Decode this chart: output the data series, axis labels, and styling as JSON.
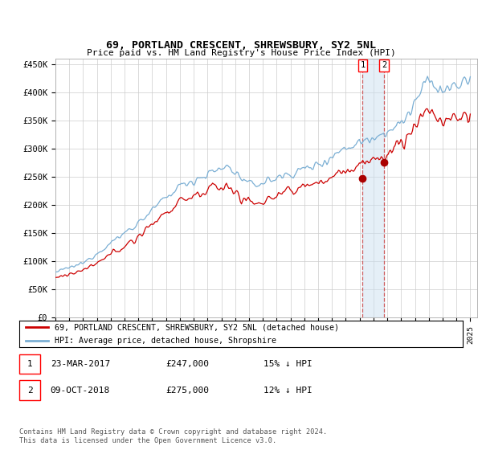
{
  "title": "69, PORTLAND CRESCENT, SHREWSBURY, SY2 5NL",
  "subtitle": "Price paid vs. HM Land Registry's House Price Index (HPI)",
  "ylabel_ticks": [
    "£0",
    "£50K",
    "£100K",
    "£150K",
    "£200K",
    "£250K",
    "£300K",
    "£350K",
    "£400K",
    "£450K"
  ],
  "ytick_values": [
    0,
    50000,
    100000,
    150000,
    200000,
    250000,
    300000,
    350000,
    400000,
    450000
  ],
  "ylim": [
    0,
    460000
  ],
  "xlim_start": 1995.0,
  "xlim_end": 2025.5,
  "marker1": {
    "date_num": 2017.22,
    "value": 247000,
    "label": "1"
  },
  "marker2": {
    "date_num": 2018.77,
    "value": 275000,
    "label": "2"
  },
  "legend_line1": "69, PORTLAND CRESCENT, SHREWSBURY, SY2 5NL (detached house)",
  "legend_line2": "HPI: Average price, detached house, Shropshire",
  "footnote": "Contains HM Land Registry data © Crown copyright and database right 2024.\nThis data is licensed under the Open Government Licence v3.0.",
  "line_color_red": "#cc0000",
  "line_color_blue": "#7bafd4",
  "marker_fill_red": "#aa0000",
  "background_color": "#ffffff",
  "grid_color": "#cccccc",
  "shade_color": "#cce0f0"
}
